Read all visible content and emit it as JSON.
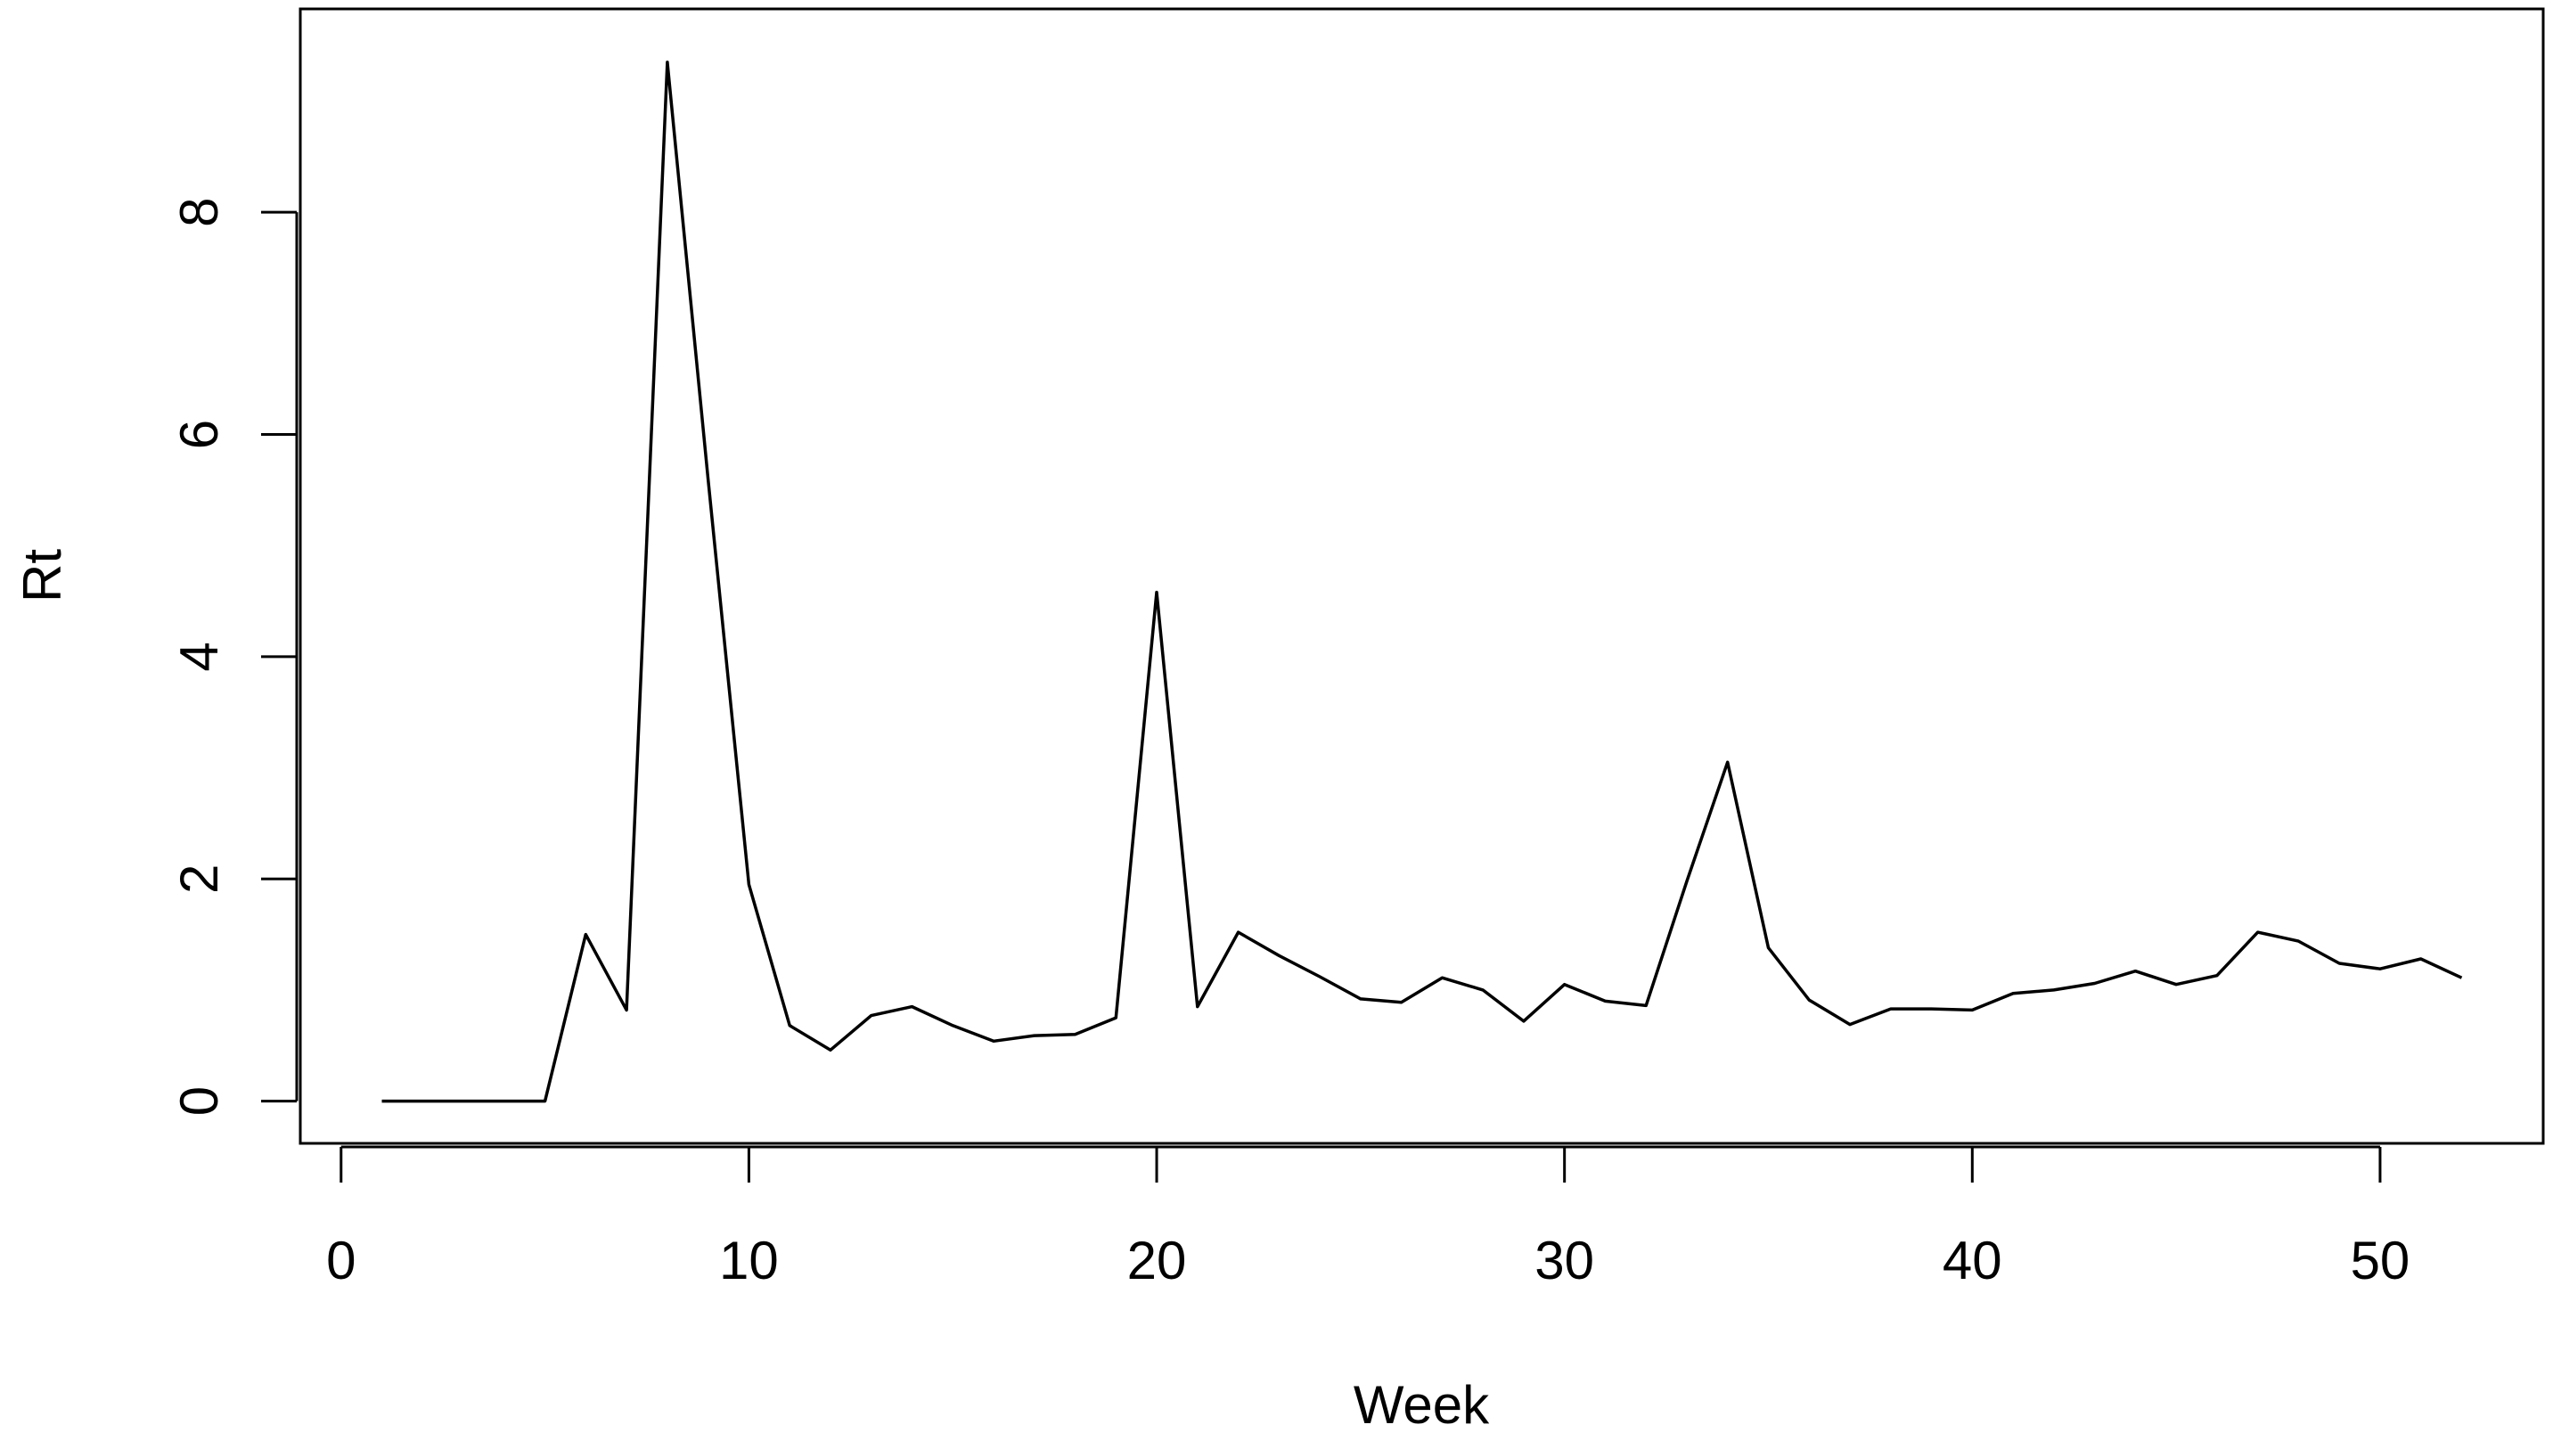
{
  "chart_data": {
    "type": "line",
    "title": "",
    "xlabel": "Week",
    "ylabel": "Rt",
    "xlim": [
      -1,
      54
    ],
    "ylim": [
      -0.38,
      9.83
    ],
    "xticks": [
      0,
      10,
      20,
      30,
      40,
      50
    ],
    "yticks": [
      0,
      2,
      4,
      6,
      8
    ],
    "grid": false,
    "legend": "none",
    "line_color": "#000000",
    "series": [
      {
        "x": [
          1,
          2,
          3,
          4,
          5,
          6,
          7,
          8,
          9,
          10,
          11,
          12,
          13,
          14,
          15,
          16,
          17,
          18,
          19,
          20,
          21,
          22,
          23,
          24,
          25,
          26,
          27,
          28,
          29,
          30,
          31,
          32,
          33,
          34,
          35,
          36,
          37,
          38,
          39,
          40,
          41,
          42,
          43,
          44,
          45,
          46,
          47,
          48,
          49,
          50,
          51,
          52
        ],
        "values": [
          0,
          0,
          0,
          0,
          0,
          1.5,
          0.82,
          9.35,
          5.6,
          1.95,
          0.68,
          0.46,
          0.77,
          0.85,
          0.68,
          0.54,
          0.59,
          0.6,
          0.75,
          4.58,
          0.85,
          1.52,
          1.31,
          1.12,
          0.92,
          0.89,
          1.11,
          1.0,
          0.72,
          1.05,
          0.9,
          0.86,
          1.98,
          3.05,
          1.38,
          0.91,
          0.69,
          0.83,
          0.83,
          0.82,
          0.97,
          1.0,
          1.06,
          1.17,
          1.05,
          1.13,
          1.52,
          1.44,
          1.24,
          1.19,
          1.28,
          1.11
        ]
      }
    ]
  }
}
